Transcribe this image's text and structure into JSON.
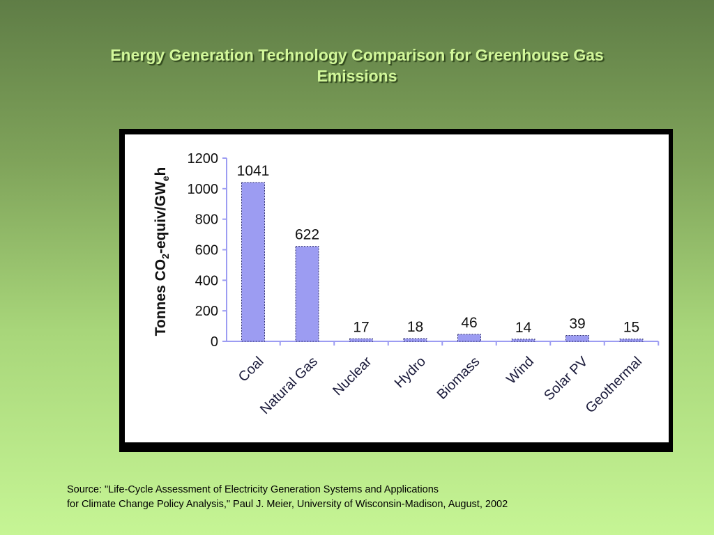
{
  "slide": {
    "title_line1": "Energy Generation Technology Comparison for Greenhouse Gas",
    "title_line2": "Emissions"
  },
  "source": {
    "line1": "Source: \"Life-Cycle Assessment of Electricity Generation Systems and Applications",
    "line2": "for Climate Change Policy Analysis,\" Paul J. Meier, University of Wisconsin-Madison, August, 2002"
  },
  "chart_data": {
    "type": "bar",
    "categories": [
      "Coal",
      "Natural Gas",
      "Nuclear",
      "Hydro",
      "Biomass",
      "Wind",
      "Solar PV",
      "Geothermal"
    ],
    "values": [
      1041,
      622,
      17,
      18,
      46,
      14,
      39,
      15
    ],
    "data_labels": [
      "1041",
      "622",
      "17",
      "18",
      "46",
      "14",
      "39",
      "15"
    ],
    "ylabel_main": "Tonnes CO",
    "ylabel_sub2": "2",
    "ylabel_mid": "-equiv/GW",
    "ylabel_sub_e": "e",
    "ylabel_end": "h",
    "ylim": [
      0,
      1200
    ],
    "yticks": [
      0,
      200,
      400,
      600,
      800,
      1000,
      1200
    ],
    "grid": false,
    "bar_color": "#9c9cf2",
    "axis_color": "#9c9cf2"
  }
}
